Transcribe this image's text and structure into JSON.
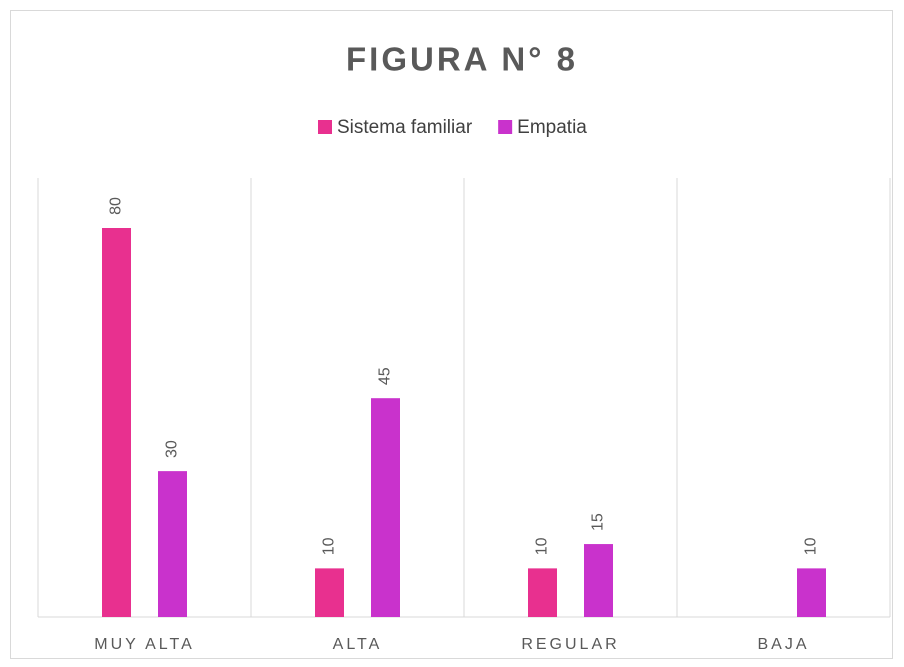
{
  "chart_data": {
    "type": "bar",
    "title": "FIGURA N° 8",
    "categories": [
      "MUY ALTA",
      "ALTA",
      "REGULAR",
      "BAJA"
    ],
    "series": [
      {
        "name": "Sistema familiar",
        "color": "#e8308f",
        "values": [
          80,
          10,
          10,
          null
        ]
      },
      {
        "name": "Empatia",
        "color": "#c932cc",
        "values": [
          30,
          45,
          15,
          10
        ]
      }
    ],
    "legend": "top"
  }
}
